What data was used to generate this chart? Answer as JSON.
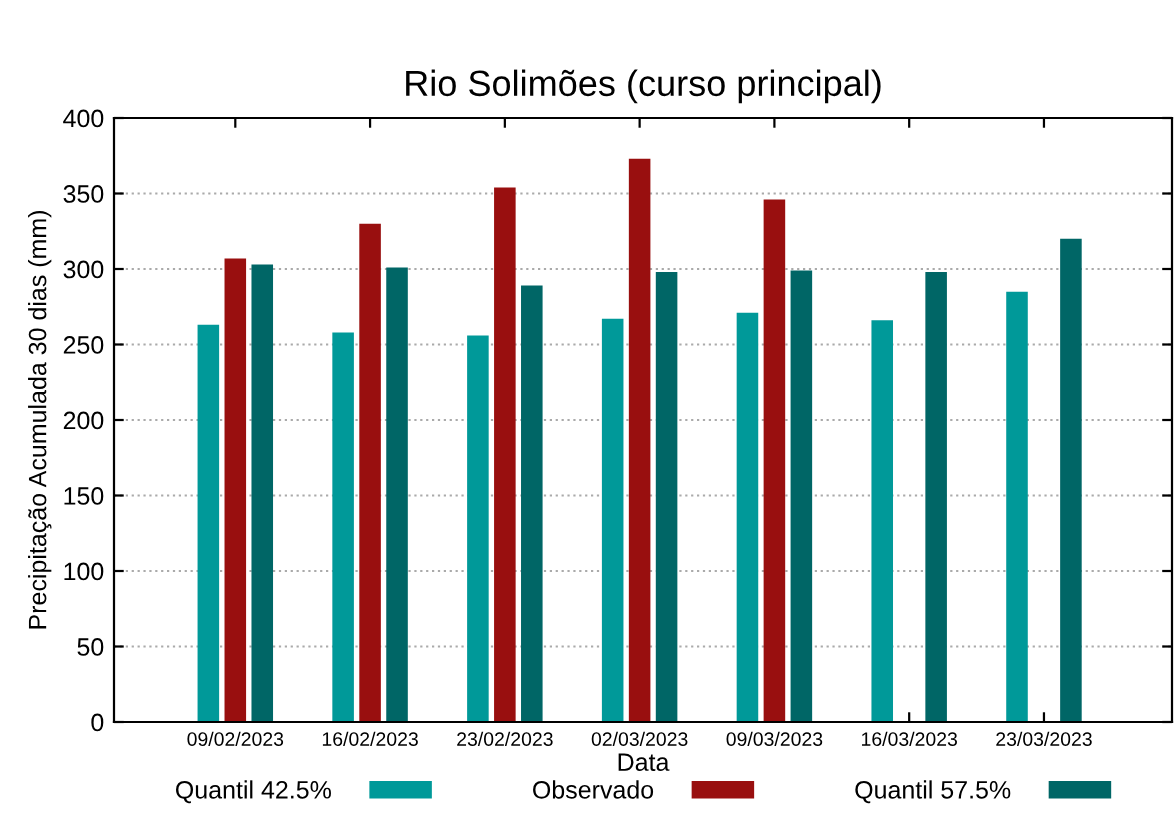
{
  "chart_data": {
    "type": "bar",
    "title": "Rio Solimões (curso principal)",
    "xlabel": "Data",
    "ylabel": "Precipitação Acumulada 30 dias (mm)",
    "categories": [
      "09/02/2023",
      "16/02/2023",
      "23/02/2023",
      "02/03/2023",
      "09/03/2023",
      "16/03/2023",
      "23/03/2023"
    ],
    "series": [
      {
        "name": "Quantil 42.5%",
        "color": "#009999",
        "values": [
          263,
          258,
          256,
          267,
          271,
          266,
          285
        ]
      },
      {
        "name": "Observado",
        "color": "#990f0f",
        "values": [
          307,
          330,
          354,
          373,
          346,
          null,
          null
        ]
      },
      {
        "name": "Quantil 57.5%",
        "color": "#006666",
        "values": [
          303,
          301,
          289,
          298,
          299,
          298,
          320
        ]
      }
    ],
    "ylim": [
      0,
      400
    ],
    "yticks": [
      0,
      50,
      100,
      150,
      200,
      250,
      300,
      350,
      400
    ],
    "grid": "y",
    "legend": "bottom"
  }
}
